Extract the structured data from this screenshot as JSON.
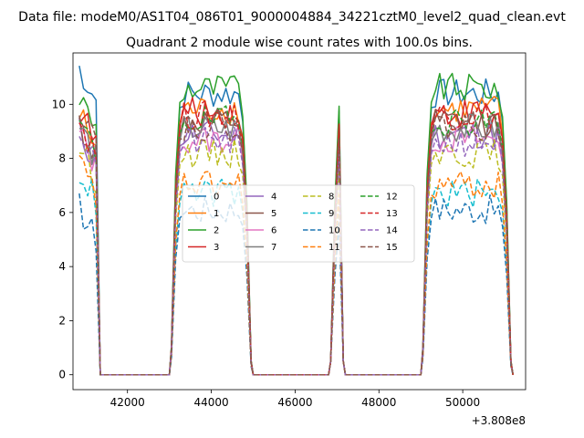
{
  "suptitle": "Data file: modeM0/AS1T04_086T01_9000004884_34221cztM0_level2_quad_clean.evt",
  "chart_data": {
    "type": "line",
    "title": "Quadrant 2 module wise count rates with 100.0s bins.",
    "xlabel": "",
    "ylabel": "",
    "x_offset_label": "+3.808e8",
    "xlim": [
      40700,
      51500
    ],
    "ylim": [
      -0.55,
      11.9
    ],
    "xticks": [
      42000,
      44000,
      46000,
      48000,
      50000
    ],
    "xtick_labels": [
      "42000",
      "44000",
      "46000",
      "48000",
      "50000"
    ],
    "yticks": [
      0,
      2,
      4,
      6,
      8,
      10
    ],
    "ytick_labels": [
      "0",
      "2",
      "4",
      "6",
      "8",
      "10"
    ],
    "legend_position": "center",
    "legend_columns": 4,
    "orbit_segments": [
      {
        "start": 40850,
        "end": 41350
      },
      {
        "start": 43050,
        "end": 44950
      },
      {
        "start": 46850,
        "end": 47150
      },
      {
        "start": 49050,
        "end": 51150
      }
    ],
    "series": [
      {
        "name": "0",
        "color": "#1f77b4",
        "dash": "solid",
        "level": 10.4,
        "start": 11.35
      },
      {
        "name": "1",
        "color": "#ff7f0e",
        "dash": "solid",
        "level": 9.8,
        "start": 9.6
      },
      {
        "name": "2",
        "color": "#2ca02c",
        "dash": "solid",
        "level": 10.6,
        "start": 10.3
      },
      {
        "name": "3",
        "color": "#d62728",
        "dash": "solid",
        "level": 9.7,
        "start": 9.8
      },
      {
        "name": "4",
        "color": "#9467bd",
        "dash": "solid",
        "level": 8.9,
        "start": 9.0
      },
      {
        "name": "5",
        "color": "#8c564b",
        "dash": "solid",
        "level": 9.3,
        "start": 9.3
      },
      {
        "name": "6",
        "color": "#e377c2",
        "dash": "solid",
        "level": 8.7,
        "start": 8.9
      },
      {
        "name": "7",
        "color": "#7f7f7f",
        "dash": "solid",
        "level": 9.1,
        "start": 9.2
      },
      {
        "name": "8",
        "color": "#bcbd22",
        "dash": "dashed",
        "level": 8.2,
        "start": 8.5
      },
      {
        "name": "9",
        "color": "#17becf",
        "dash": "dashed",
        "level": 6.7,
        "start": 7.6
      },
      {
        "name": "10",
        "color": "#1f77b4",
        "dash": "dashed",
        "level": 6.1,
        "start": 6.2
      },
      {
        "name": "11",
        "color": "#ff7f0e",
        "dash": "dashed",
        "level": 7.0,
        "start": 7.8
      },
      {
        "name": "12",
        "color": "#2ca02c",
        "dash": "dashed",
        "level": 9.4,
        "start": 9.3
      },
      {
        "name": "13",
        "color": "#d62728",
        "dash": "dashed",
        "level": 9.6,
        "start": 9.4
      },
      {
        "name": "14",
        "color": "#9467bd",
        "dash": "dashed",
        "level": 8.6,
        "start": 9.1
      },
      {
        "name": "15",
        "color": "#8c564b",
        "dash": "dashed",
        "level": 9.2,
        "start": 10.0
      }
    ]
  }
}
